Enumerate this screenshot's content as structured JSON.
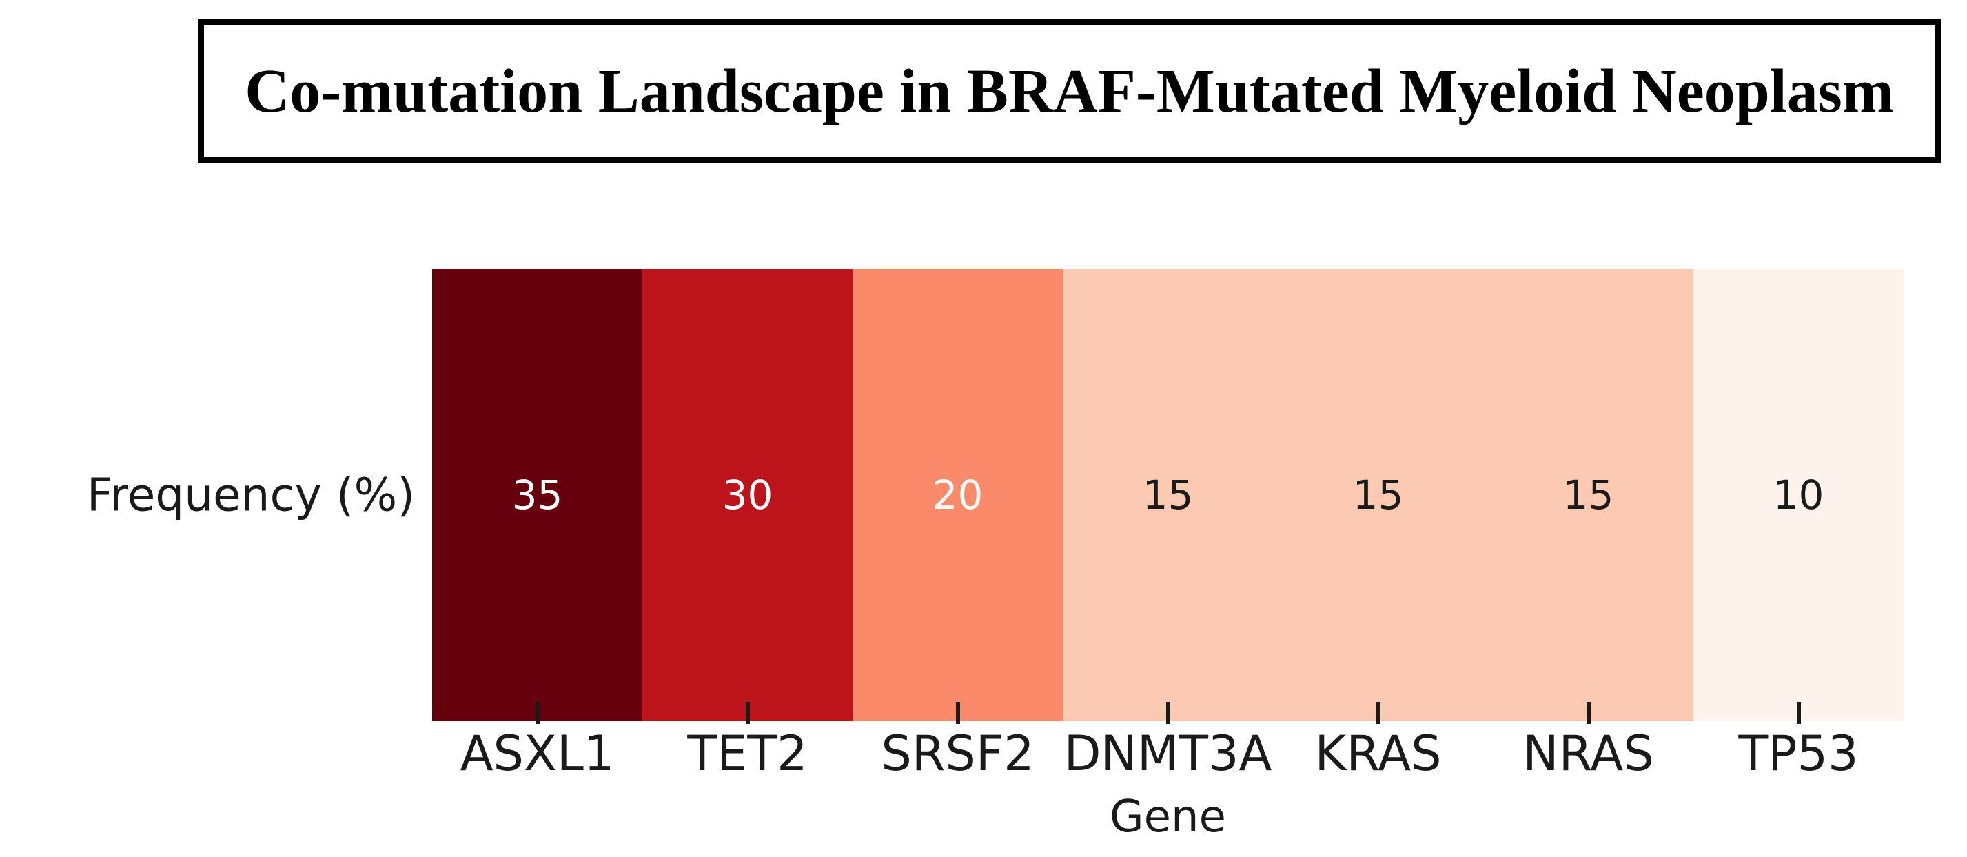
{
  "header": {
    "title": "Co-mutation Landscape in BRAF-Mutated Myeloid Neoplasm"
  },
  "chart_data": {
    "type": "heatmap",
    "title": "Co-mutation Landscape in BRAF-Mutated Myeloid Neoplasm",
    "xlabel": "Gene",
    "row_label": "Frequency (%)",
    "categories": [
      "ASXL1",
      "TET2",
      "SRSF2",
      "DNMT3A",
      "KRAS",
      "NRAS",
      "TP53"
    ],
    "values": [
      35,
      30,
      20,
      15,
      15,
      15,
      10
    ],
    "rows": [
      {
        "label": "Frequency (%)",
        "values": [
          35,
          30,
          20,
          15,
          15,
          15,
          10
        ]
      }
    ],
    "colormap": "Reds",
    "legend": "none",
    "annotations_shown": true,
    "cell_colors": [
      "#67000d",
      "#bc141a",
      "#fb8a6a",
      "#fcc9b3",
      "#fcc9b3",
      "#fcc9b3",
      "#fdf2ec"
    ],
    "value_text_colors": [
      "#ffffff",
      "#ffffff",
      "#ffffff",
      "#1a1a1a",
      "#1a1a1a",
      "#1a1a1a",
      "#1a1a1a"
    ],
    "axis_text_color": "#1a1a1a",
    "tick_color": "#1a1a1a",
    "title_border_color": "#000000"
  }
}
